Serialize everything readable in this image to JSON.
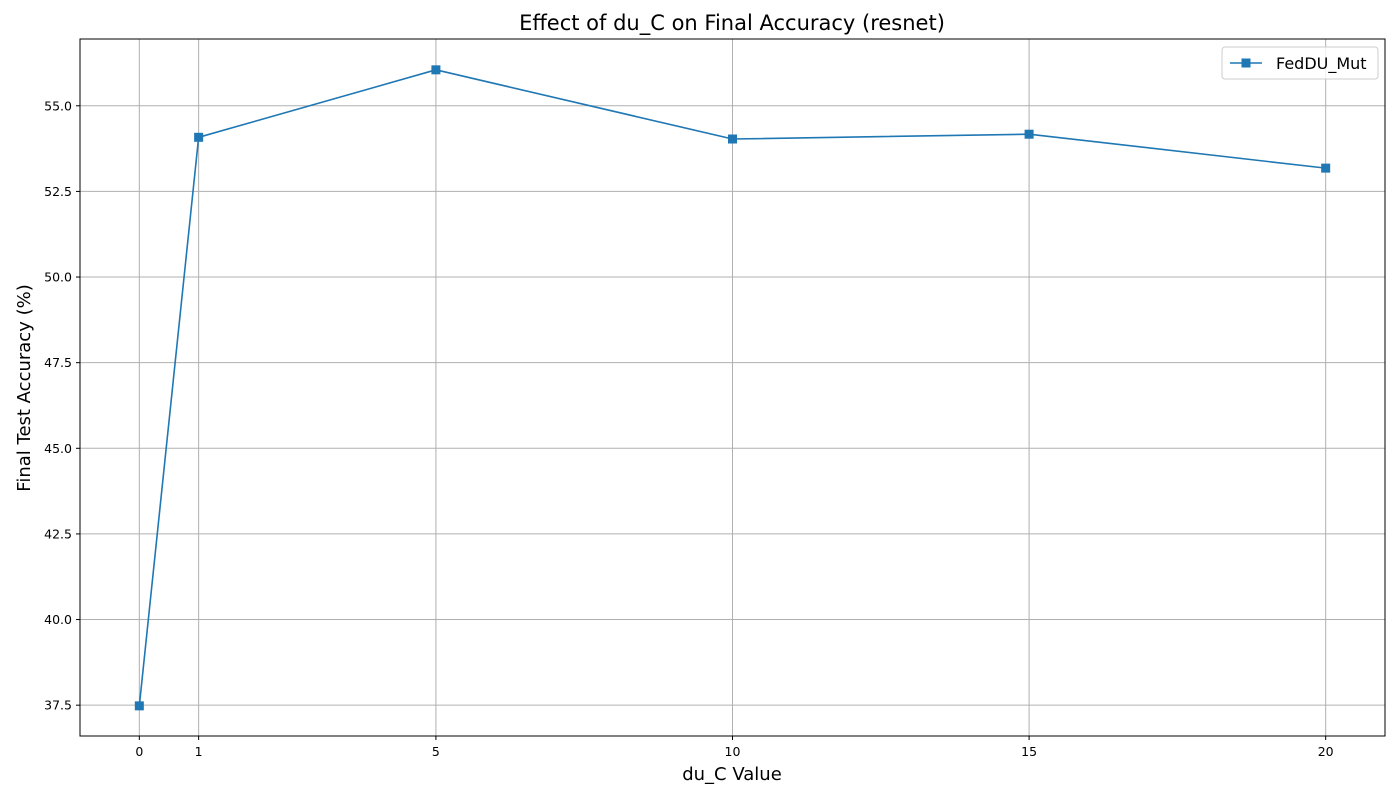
{
  "chart_data": {
    "type": "line",
    "title": "Effect of du_C on Final Accuracy (resnet)",
    "xlabel": "du_C Value",
    "ylabel": "Final Test Accuracy (%)",
    "x_ticks": [
      0,
      1,
      5,
      10,
      15,
      20
    ],
    "y_ticks": [
      37.5,
      40.0,
      42.5,
      45.0,
      47.5,
      50.0,
      52.5,
      55.0
    ],
    "y_tick_labels": [
      "37.5",
      "40.0",
      "42.5",
      "45.0",
      "47.5",
      "50.0",
      "52.5",
      "55.0"
    ],
    "xlim": [
      -1,
      21
    ],
    "ylim": [
      36.6,
      56.95
    ],
    "grid": true,
    "legend_position": "upper right",
    "series": [
      {
        "name": "FedDU_Mut",
        "color": "#1f77b4",
        "marker": "square",
        "x": [
          0,
          1,
          5,
          10,
          15,
          20
        ],
        "y": [
          37.48,
          54.08,
          56.05,
          54.03,
          54.17,
          53.18
        ]
      }
    ]
  }
}
